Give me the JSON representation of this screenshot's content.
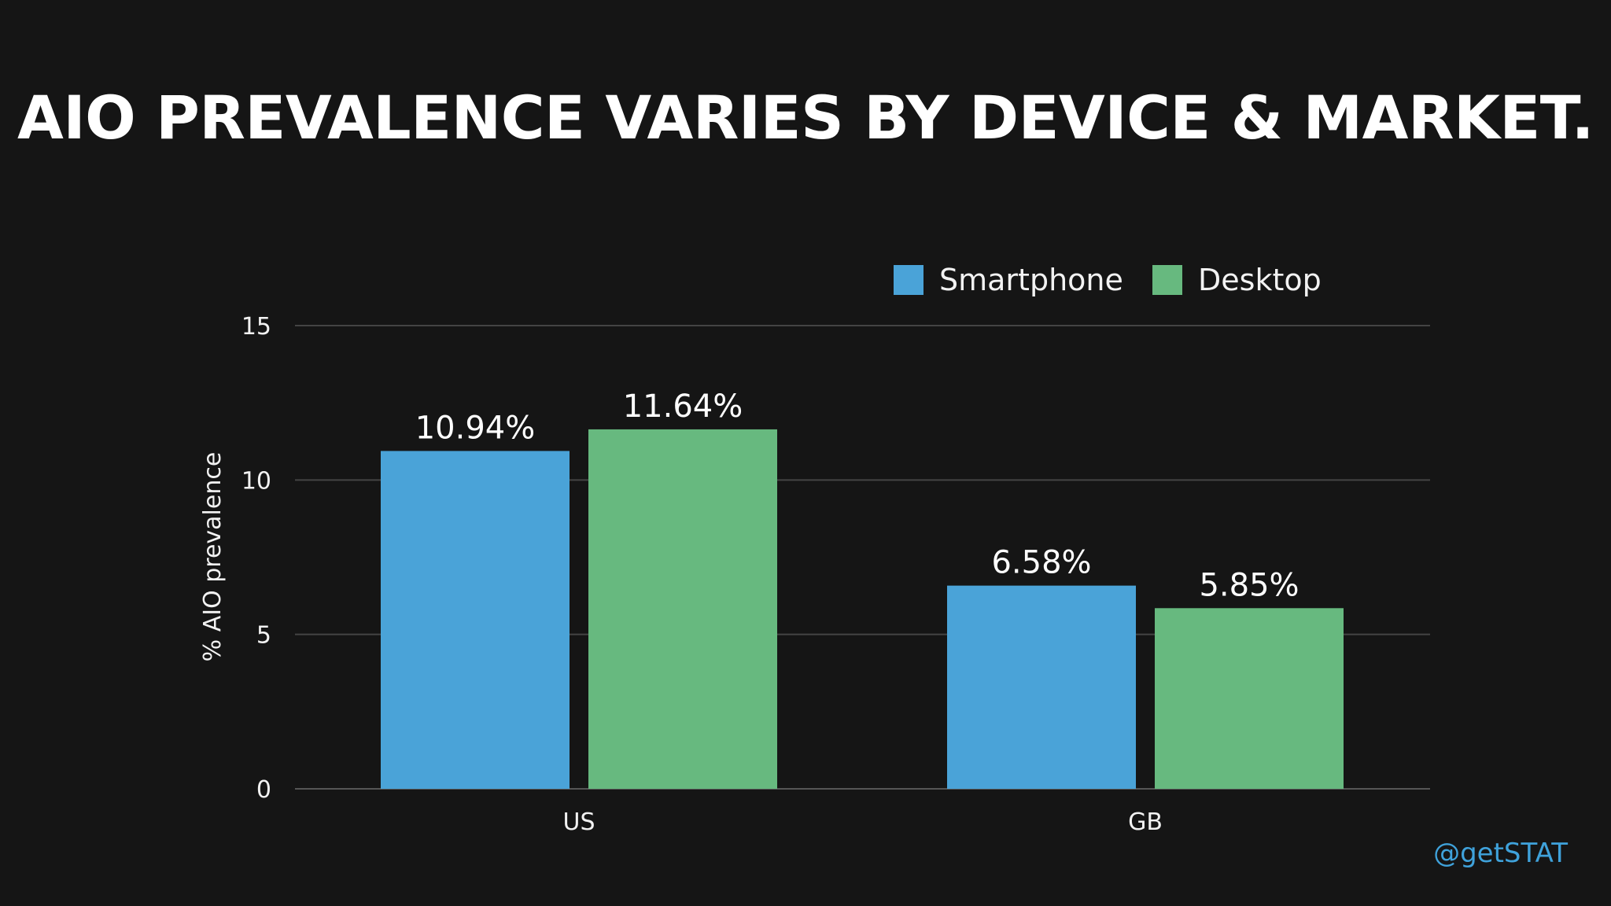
{
  "title": "AIO PREVALENCE VARIES BY DEVICE & MARKET.",
  "handle": "@getSTAT",
  "colors": {
    "background": "#151515",
    "smartphone": "#4aa3d8",
    "desktop": "#67b97f",
    "gridline": "#444444",
    "handle": "#3fa2db"
  },
  "chart_data": {
    "type": "bar",
    "title": "AIO PREVALENCE VARIES BY DEVICE & MARKET.",
    "categories": [
      "US",
      "GB"
    ],
    "series": [
      {
        "name": "Smartphone",
        "values": [
          10.94,
          6.58
        ],
        "labels": [
          "10.94%",
          "6.58%"
        ],
        "color": "#4aa3d8"
      },
      {
        "name": "Desktop",
        "values": [
          11.64,
          5.85
        ],
        "labels": [
          "11.64%",
          "5.85%"
        ],
        "color": "#67b97f"
      }
    ],
    "xlabel": "",
    "ylabel": "% AIO prevalence",
    "ylim": [
      0,
      15
    ],
    "yticks": [
      0,
      5,
      10,
      15
    ],
    "grid": true,
    "legend": "top-right"
  }
}
